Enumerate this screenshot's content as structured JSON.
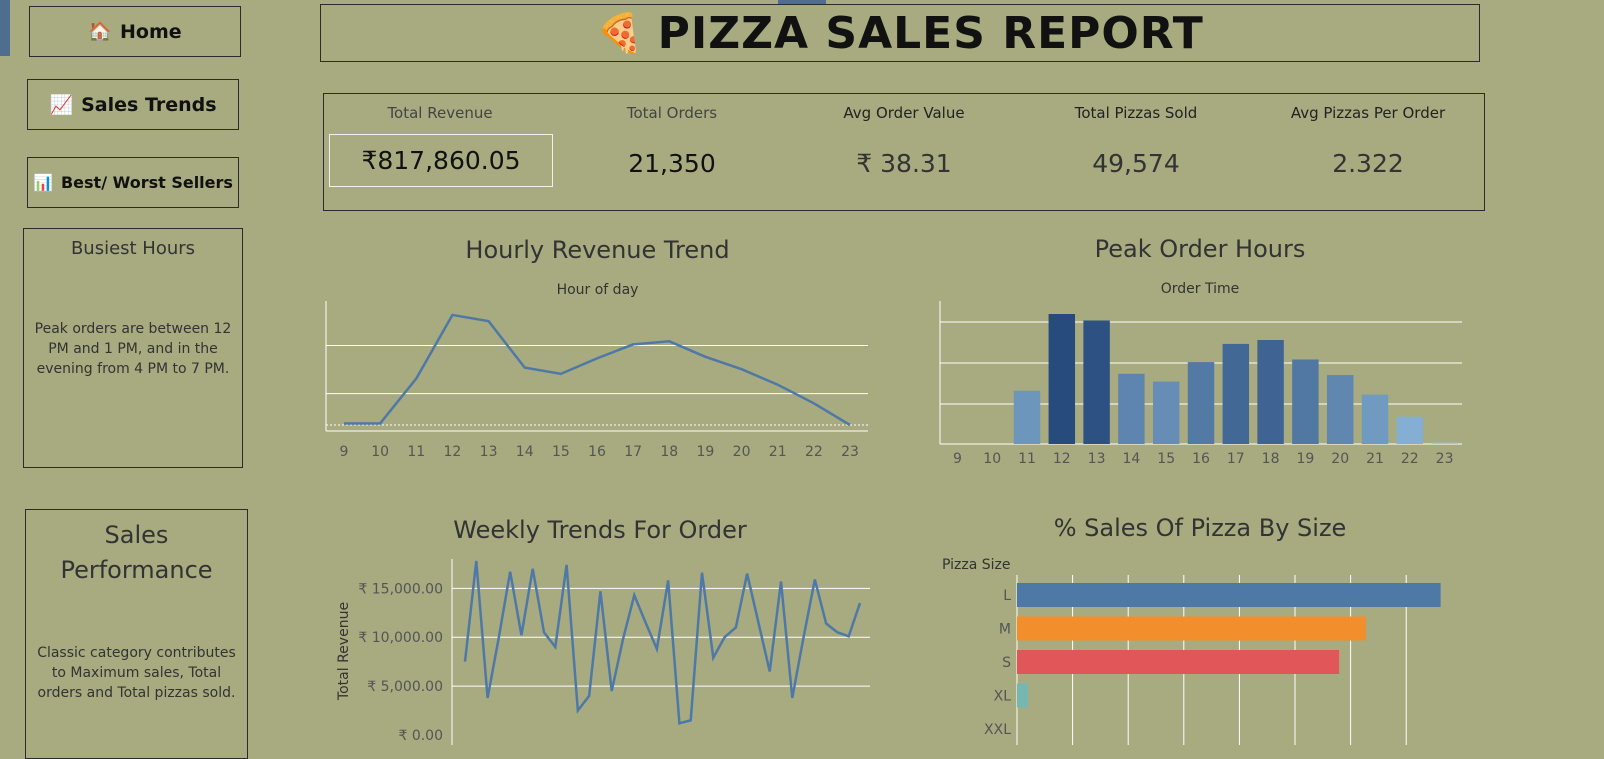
{
  "nav": {
    "home": {
      "label": "Home",
      "icon": "🏠"
    },
    "sales_trends": {
      "label": "Sales Trends",
      "icon": "📈"
    },
    "best_worst": {
      "label": "Best/ Worst Sellers",
      "icon": "📊"
    }
  },
  "header": {
    "icon": "🍕",
    "title": "PIZZA SALES REPORT"
  },
  "kpis": [
    {
      "label": "Total Revenue",
      "value": "₹817,860.05"
    },
    {
      "label": "Total Orders",
      "value": "21,350"
    },
    {
      "label": "Avg Order Value",
      "value": "₹ 38.31"
    },
    {
      "label": "Total Pizzas Sold",
      "value": "49,574"
    },
    {
      "label": "Avg Pizzas Per Order",
      "value": "2.322"
    }
  ],
  "busiest": {
    "title": "Busiest Hours",
    "text": "Peak orders are between 12 PM and 1 PM, and in the evening from 4 PM to 7 PM."
  },
  "performance": {
    "title": "Sales Performance",
    "text": "Classic category contributes to Maximum sales, Total orders and Total pizzas sold."
  },
  "colors": {
    "background": "#a8aa7f",
    "line": "#4e79a7",
    "size_L": "#4e79a7",
    "size_M": "#f28e2b",
    "size_S": "#e15759",
    "size_XL": "#76b7b2"
  },
  "chart_data": [
    {
      "type": "line",
      "title": "Hourly Revenue Trend",
      "subtitle": "Hour of day",
      "x": [
        9,
        10,
        11,
        12,
        13,
        14,
        15,
        16,
        17,
        18,
        19,
        20,
        21,
        22,
        23
      ],
      "values": [
        1,
        1,
        30,
        71,
        67,
        37,
        33,
        43,
        52,
        54,
        44,
        36,
        26,
        14,
        0
      ],
      "xlabels": [
        "9",
        "10",
        "11",
        "12",
        "13",
        "14",
        "15",
        "16",
        "17",
        "18",
        "19",
        "20",
        "21",
        "22",
        "23"
      ],
      "ylim": [
        0,
        80
      ]
    },
    {
      "type": "bar",
      "title": "Peak Order Hours",
      "subtitle": "Order Time",
      "categories": [
        "9",
        "10",
        "11",
        "12",
        "13",
        "14",
        "15",
        "16",
        "17",
        "18",
        "19",
        "20",
        "21",
        "22",
        "23"
      ],
      "values": [
        0,
        0,
        41,
        100,
        95,
        54,
        48,
        63,
        77,
        80,
        65,
        53,
        38,
        21,
        1
      ],
      "ylim": [
        0,
        110
      ]
    },
    {
      "type": "line",
      "title": "Weekly Trends For Order",
      "ylabel": "Total Revenue",
      "yticks": [
        "₹ 0.00",
        "₹ 5,000.00",
        "₹ 10,000.00",
        "₹ 15,000.00"
      ],
      "ylim": [
        0,
        18000
      ],
      "values": [
        7500,
        17800,
        3800,
        10000,
        16700,
        10200,
        17000,
        10500,
        9000,
        17400,
        2500,
        4000,
        14700,
        4500,
        9800,
        14300,
        11500,
        8800,
        15800,
        1200,
        1500,
        16600,
        7900,
        10000,
        11000,
        16500,
        11500,
        6500,
        15700,
        3800,
        10000,
        15900,
        11400,
        10500,
        10100,
        13500
      ]
    },
    {
      "type": "bar",
      "title": "% Sales Of Pizza By Size",
      "subtitle": "Pizza Size",
      "categories": [
        "L",
        "M",
        "S",
        "XL",
        "XXL"
      ],
      "values": [
        45.9,
        37.8,
        34.9,
        1.2,
        0.0
      ],
      "xlim": [
        0,
        48
      ]
    }
  ]
}
